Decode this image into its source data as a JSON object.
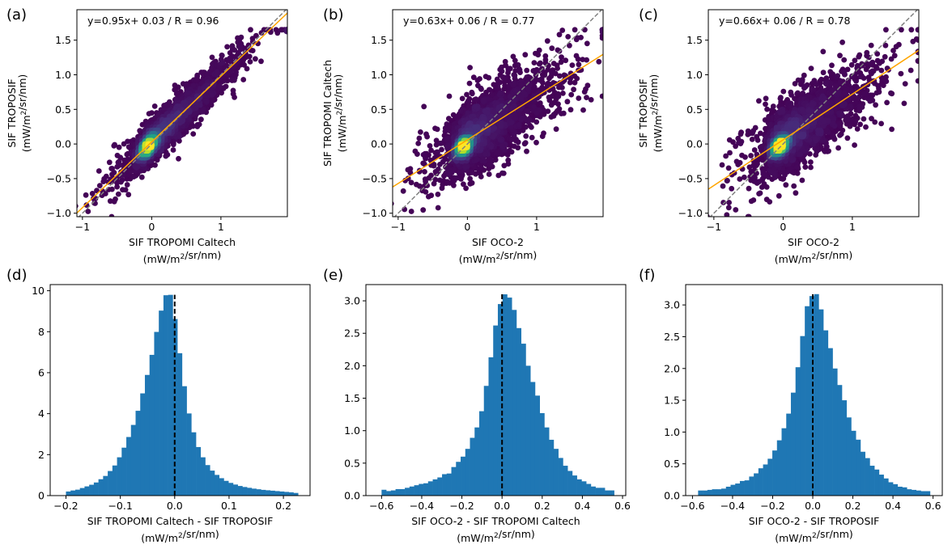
{
  "chart_data": [
    {
      "id": "a",
      "type": "scatter",
      "panel_label": "(a)",
      "annotation": "y=0.95x+ 0.03 / R = 0.96",
      "fit": {
        "slope": 0.95,
        "intercept": 0.03,
        "r": 0.96
      },
      "xlabel": [
        "SIF TROPOMI Caltech",
        "(mW/m²/sr/nm)"
      ],
      "ylabel": [
        "SIF TROPOSIF",
        "(mW/m²/sr/nm)"
      ],
      "xlim": [
        -1.08,
        1.96
      ],
      "ylim": [
        -1.05,
        1.94
      ],
      "xticks": [
        -1,
        0,
        1
      ],
      "xtick_labels": [
        "−1",
        "0",
        "1"
      ],
      "yticks": [
        -1,
        -0.5,
        0,
        0.5,
        1,
        1.5
      ],
      "ytick_labels": [
        "−1.0",
        "−0.5",
        "0.0",
        "0.5",
        "1.0",
        "1.5"
      ],
      "reference_line": "1:1 dashed grey",
      "fit_color": "#ffa500",
      "point_model": {
        "n": 6000,
        "noise_sd": 0.11,
        "seed": 11
      },
      "colormap": "viridis"
    },
    {
      "id": "b",
      "type": "scatter",
      "panel_label": "(b)",
      "annotation": "y=0.63x+ 0.06 / R = 0.77",
      "fit": {
        "slope": 0.63,
        "intercept": 0.06,
        "r": 0.77
      },
      "xlabel": [
        "SIF OCO-2",
        "(mW/m²/sr/nm)"
      ],
      "ylabel": [
        "SIF TROPOMI Caltech",
        "(mW/m²/sr/nm)"
      ],
      "xlim": [
        -1.08,
        1.96
      ],
      "ylim": [
        -1.05,
        1.94
      ],
      "xticks": [
        -1,
        0,
        1
      ],
      "xtick_labels": [
        "−1",
        "0",
        "1"
      ],
      "yticks": [
        -1,
        -0.5,
        0,
        0.5,
        1,
        1.5
      ],
      "ytick_labels": [
        "−1.0",
        "−0.5",
        "0.0",
        "0.5",
        "1.0",
        "1.5"
      ],
      "reference_line": "1:1 dashed grey",
      "fit_color": "#ffa500",
      "point_model": {
        "n": 6000,
        "noise_sd": 0.2,
        "seed": 22
      },
      "colormap": "viridis"
    },
    {
      "id": "c",
      "type": "scatter",
      "panel_label": "(c)",
      "annotation": "y=0.66x+ 0.06 / R = 0.78",
      "fit": {
        "slope": 0.66,
        "intercept": 0.06,
        "r": 0.78
      },
      "xlabel": [
        "SIF OCO-2",
        "(mW/m²/sr/nm)"
      ],
      "ylabel": [
        "SIF TROPOSIF",
        "(mW/m²/sr/nm)"
      ],
      "xlim": [
        -1.08,
        1.96
      ],
      "ylim": [
        -1.05,
        1.94
      ],
      "xticks": [
        -1,
        0,
        1
      ],
      "xtick_labels": [
        "−1",
        "0",
        "1"
      ],
      "yticks": [
        -1,
        -0.5,
        0,
        0.5,
        1,
        1.5
      ],
      "ytick_labels": [
        "−1.0",
        "−0.5",
        "0.0",
        "0.5",
        "1.0",
        "1.5"
      ],
      "reference_line": "1:1 dashed grey",
      "fit_color": "#ffa500",
      "point_model": {
        "n": 6000,
        "noise_sd": 0.19,
        "seed": 33
      },
      "colormap": "viridis"
    },
    {
      "id": "d",
      "type": "bar",
      "subtype": "histogram",
      "panel_label": "(d)",
      "bar_color": "#1f77b4",
      "bin_range": [
        -0.2,
        0.227
      ],
      "values": [
        0.2,
        0.25,
        0.29,
        0.37,
        0.45,
        0.53,
        0.64,
        0.8,
        0.96,
        1.2,
        1.47,
        1.87,
        2.34,
        2.86,
        3.45,
        4.14,
        4.99,
        5.89,
        6.87,
        7.99,
        9.03,
        9.78,
        9.8,
        8.62,
        6.95,
        5.34,
        4.01,
        3.09,
        2.37,
        1.87,
        1.49,
        1.22,
        1.01,
        0.85,
        0.72,
        0.62,
        0.54,
        0.47,
        0.42,
        0.38,
        0.34,
        0.31,
        0.28,
        0.26,
        0.24,
        0.22,
        0.2,
        0.18,
        0.16,
        0.13
      ],
      "vline": 0,
      "xlabel": [
        "SIF TROPOMI Caltech  -  SIF TROPOSIF",
        "(mW/m²/sr/nm)"
      ],
      "xlim": [
        -0.229,
        0.249
      ],
      "ylim": [
        0,
        10.3
      ],
      "xticks": [
        -0.2,
        -0.1,
        0,
        0.1,
        0.2
      ],
      "xtick_labels": [
        "−0.2",
        "−0.1",
        "0.0",
        "0.1",
        "0.2"
      ],
      "yticks": [
        0,
        2,
        4,
        6,
        8,
        10
      ],
      "ytick_labels": [
        "0",
        "2",
        "4",
        "6",
        "8",
        "10"
      ]
    },
    {
      "id": "e",
      "type": "bar",
      "subtype": "histogram",
      "panel_label": "(e)",
      "bar_color": "#1f77b4",
      "bin_range": [
        -0.6,
        0.558
      ],
      "values": [
        0.09,
        0.07,
        0.08,
        0.1,
        0.1,
        0.12,
        0.14,
        0.16,
        0.18,
        0.19,
        0.22,
        0.25,
        0.28,
        0.33,
        0.34,
        0.44,
        0.52,
        0.6,
        0.72,
        0.89,
        1.05,
        1.3,
        1.69,
        2.13,
        2.62,
        2.95,
        3.1,
        3.05,
        2.86,
        2.58,
        2.34,
        2.0,
        1.75,
        1.54,
        1.27,
        1.05,
        0.86,
        0.72,
        0.58,
        0.46,
        0.38,
        0.31,
        0.25,
        0.22,
        0.18,
        0.14,
        0.12,
        0.12,
        0.08,
        0.08
      ],
      "vline": 0,
      "xlabel": [
        "SIF OCO-2  -  SIF TROPOMI Caltech",
        "(mW/m²/sr/nm)"
      ],
      "xlim": [
        -0.678,
        0.616
      ],
      "ylim": [
        0,
        3.25
      ],
      "xticks": [
        -0.6,
        -0.4,
        -0.2,
        0,
        0.2,
        0.4,
        0.6
      ],
      "xtick_labels": [
        "−0.6",
        "−0.4",
        "−0.2",
        "0.0",
        "0.2",
        "0.4",
        "0.6"
      ],
      "yticks": [
        0,
        0.5,
        1,
        1.5,
        2,
        2.5,
        3
      ],
      "ytick_labels": [
        "0.0",
        "0.5",
        "1.0",
        "1.5",
        "2.0",
        "2.5",
        "3.0"
      ]
    },
    {
      "id": "f",
      "type": "bar",
      "subtype": "histogram",
      "panel_label": "(f)",
      "bar_color": "#1f77b4",
      "bin_range": [
        -0.572,
        0.585
      ],
      "values": [
        0.08,
        0.08,
        0.09,
        0.1,
        0.1,
        0.11,
        0.14,
        0.17,
        0.19,
        0.23,
        0.24,
        0.3,
        0.35,
        0.43,
        0.49,
        0.58,
        0.71,
        0.87,
        1.06,
        1.29,
        1.62,
        2.02,
        2.51,
        2.98,
        3.14,
        3.17,
        2.93,
        2.6,
        2.32,
        2.0,
        1.74,
        1.5,
        1.23,
        1.02,
        0.88,
        0.69,
        0.59,
        0.47,
        0.41,
        0.33,
        0.27,
        0.21,
        0.18,
        0.14,
        0.13,
        0.1,
        0.09,
        0.08,
        0.07,
        0.07
      ],
      "vline": 0,
      "xlabel": [
        "SIF OCO-2  -  SIF TROPOSIF",
        "(mW/m²/sr/nm)"
      ],
      "xlim": [
        -0.634,
        0.646
      ],
      "ylim": [
        0,
        3.32
      ],
      "xticks": [
        -0.6,
        -0.4,
        -0.2,
        0,
        0.2,
        0.4,
        0.6
      ],
      "xtick_labels": [
        "−0.6",
        "−0.4",
        "−0.2",
        "0.0",
        "0.2",
        "0.4",
        "0.6"
      ],
      "yticks": [
        0,
        0.5,
        1,
        1.5,
        2,
        2.5,
        3
      ],
      "ytick_labels": [
        "0.0",
        "0.5",
        "1.0",
        "1.5",
        "2.0",
        "2.5",
        "3.0"
      ]
    }
  ]
}
